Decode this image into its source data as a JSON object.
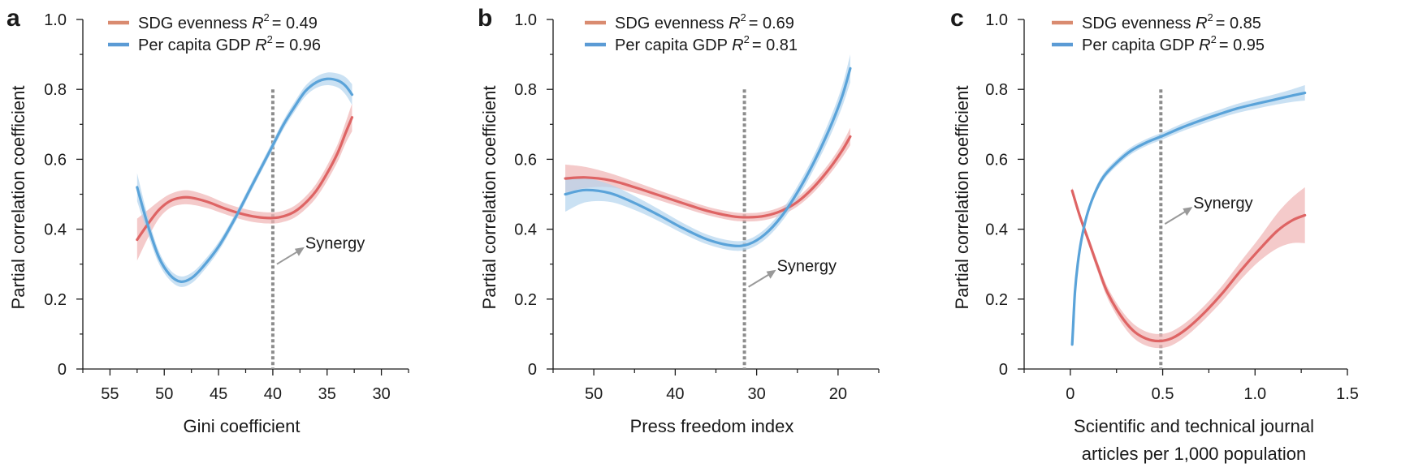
{
  "figure": {
    "ylabel": "Partial correlation coefficient",
    "synergy_label": "Synergy",
    "colors": {
      "sdg_line": "#de6464",
      "sdg_band": "#f0b3b3",
      "sdg_legend": "#d98b70",
      "gdp_line": "#5aa3d9",
      "gdp_band": "#b3d4ee",
      "gdp_legend": "#5b9bd5",
      "threshold": "#8c8c8c",
      "arrow": "#999999"
    }
  },
  "chart_data": [
    {
      "panel": "a",
      "type": "line",
      "xlabel": "Gini coefficient",
      "ylabel": "Partial correlation coefficient",
      "xlim": [
        57.5,
        27.5
      ],
      "ylim": [
        0,
        1.0
      ],
      "x_ticks": [
        55,
        50,
        45,
        40,
        35,
        30
      ],
      "x_tick_labels": [
        "55",
        "50",
        "45",
        "40",
        "35",
        "30"
      ],
      "x_minor_ticks": [
        57.5,
        52.5,
        47.5,
        42.5,
        37.5,
        32.5,
        27.5
      ],
      "y_ticks": [
        0,
        0.2,
        0.4,
        0.6,
        0.8,
        1.0
      ],
      "y_tick_labels": [
        "0",
        "0.2",
        "0.4",
        "0.6",
        "0.8",
        "1.0"
      ],
      "y_minor_ticks": [
        0.1,
        0.3,
        0.5,
        0.7,
        0.9
      ],
      "threshold_x": 40,
      "legend_location": "top-left",
      "series": [
        {
          "name": "SDG evenness",
          "r2_label": "R",
          "r2_value": "= 0.49",
          "x": [
            52.5,
            51.5,
            50.5,
            49.5,
            48.5,
            47.5,
            46,
            44.5,
            43,
            41.5,
            40,
            39,
            38,
            37,
            36,
            35,
            34,
            33.3,
            32.7
          ],
          "y": [
            0.37,
            0.415,
            0.455,
            0.48,
            0.49,
            0.49,
            0.478,
            0.46,
            0.445,
            0.435,
            0.432,
            0.437,
            0.45,
            0.475,
            0.51,
            0.56,
            0.62,
            0.675,
            0.72
          ],
          "ci_halfwidth": [
            0.06,
            0.04,
            0.025,
            0.02,
            0.02,
            0.02,
            0.018,
            0.016,
            0.016,
            0.016,
            0.016,
            0.016,
            0.017,
            0.018,
            0.02,
            0.022,
            0.025,
            0.03,
            0.04
          ]
        },
        {
          "name": "Per capita GDP",
          "r2_label": "R",
          "r2_value": "= 0.96",
          "x": [
            52.5,
            51.5,
            50.5,
            49.5,
            48.5,
            47.5,
            46.5,
            45,
            43.5,
            42,
            40.5,
            40,
            39,
            38,
            37,
            36,
            35,
            34,
            33.3,
            32.7
          ],
          "y": [
            0.52,
            0.41,
            0.32,
            0.27,
            0.25,
            0.26,
            0.29,
            0.35,
            0.43,
            0.52,
            0.61,
            0.64,
            0.7,
            0.75,
            0.795,
            0.82,
            0.83,
            0.825,
            0.81,
            0.785
          ],
          "ci_halfwidth": [
            0.04,
            0.025,
            0.018,
            0.015,
            0.015,
            0.015,
            0.014,
            0.013,
            0.012,
            0.012,
            0.012,
            0.012,
            0.013,
            0.014,
            0.015,
            0.016,
            0.018,
            0.02,
            0.025,
            0.03
          ]
        }
      ]
    },
    {
      "panel": "b",
      "type": "line",
      "xlabel": "Press freedom index",
      "ylabel": "Partial correlation coefficient",
      "xlim": [
        55,
        15
      ],
      "ylim": [
        0,
        1.0
      ],
      "x_ticks": [
        50,
        40,
        30,
        20
      ],
      "x_tick_labels": [
        "50",
        "40",
        "30",
        "20"
      ],
      "x_minor_ticks": [
        55,
        45,
        35,
        25,
        15
      ],
      "y_ticks": [
        0,
        0.2,
        0.4,
        0.6,
        0.8,
        1.0
      ],
      "y_tick_labels": [
        "0",
        "0.2",
        "0.4",
        "0.6",
        "0.8",
        "1.0"
      ],
      "y_minor_ticks": [
        0.1,
        0.3,
        0.5,
        0.7,
        0.9
      ],
      "threshold_x": 31.5,
      "legend_location": "top-left",
      "series": [
        {
          "name": "SDG evenness",
          "r2_label": "R",
          "r2_value": "= 0.69",
          "x": [
            53.5,
            51,
            48,
            45,
            42,
            39,
            36,
            33,
            31,
            29,
            27,
            25,
            23,
            21,
            19.5,
            18.5
          ],
          "y": [
            0.545,
            0.548,
            0.54,
            0.52,
            0.497,
            0.474,
            0.452,
            0.437,
            0.434,
            0.438,
            0.452,
            0.478,
            0.52,
            0.575,
            0.625,
            0.665
          ],
          "ci_halfwidth": [
            0.04,
            0.03,
            0.02,
            0.016,
            0.014,
            0.013,
            0.012,
            0.012,
            0.012,
            0.012,
            0.012,
            0.013,
            0.015,
            0.017,
            0.02,
            0.025
          ]
        },
        {
          "name": "Per capita GDP",
          "r2_label": "R",
          "r2_value": "= 0.81",
          "x": [
            53.5,
            51,
            48,
            45,
            42,
            39,
            36,
            33,
            31,
            29,
            27,
            25,
            23,
            21,
            19.5,
            18.5
          ],
          "y": [
            0.5,
            0.512,
            0.503,
            0.475,
            0.44,
            0.402,
            0.37,
            0.353,
            0.357,
            0.385,
            0.435,
            0.505,
            0.59,
            0.69,
            0.78,
            0.86
          ],
          "ci_halfwidth": [
            0.05,
            0.035,
            0.025,
            0.02,
            0.017,
            0.015,
            0.014,
            0.014,
            0.014,
            0.015,
            0.016,
            0.018,
            0.02,
            0.025,
            0.03,
            0.04
          ]
        }
      ]
    },
    {
      "panel": "c",
      "type": "line",
      "xlabel": "Scientific and technical journal articles per 1,000 population",
      "xlabel_lines": [
        "Scientific and technical journal",
        "articles per 1,000 population"
      ],
      "ylabel": "Partial correlation coefficient",
      "xlim": [
        -0.25,
        1.5
      ],
      "ylim": [
        0,
        1.0
      ],
      "x_ticks": [
        0,
        0.5,
        1.0,
        1.5
      ],
      "x_tick_labels": [
        "0",
        "0.5",
        "1.0",
        "1.5"
      ],
      "x_minor_ticks": [
        -0.25,
        0.25,
        0.75,
        1.25
      ],
      "y_ticks": [
        0,
        0.2,
        0.4,
        0.6,
        0.8,
        1.0
      ],
      "y_tick_labels": [
        "0",
        "0.2",
        "0.4",
        "0.6",
        "0.8",
        "1.0"
      ],
      "y_minor_ticks": [
        0.1,
        0.3,
        0.5,
        0.7,
        0.9
      ],
      "threshold_x": 0.49,
      "legend_location": "top-left",
      "series": [
        {
          "name": "SDG evenness",
          "r2_label": "R",
          "r2_value": "= 0.85",
          "x": [
            0.01,
            0.05,
            0.1,
            0.15,
            0.2,
            0.27,
            0.34,
            0.41,
            0.48,
            0.55,
            0.63,
            0.72,
            0.82,
            0.92,
            1.02,
            1.12,
            1.2,
            1.27
          ],
          "y": [
            0.51,
            0.44,
            0.365,
            0.29,
            0.22,
            0.155,
            0.11,
            0.087,
            0.08,
            0.088,
            0.115,
            0.158,
            0.215,
            0.28,
            0.34,
            0.395,
            0.425,
            0.44
          ],
          "ci_halfwidth": [
            0.01,
            0.01,
            0.012,
            0.014,
            0.016,
            0.018,
            0.02,
            0.02,
            0.02,
            0.02,
            0.02,
            0.02,
            0.022,
            0.026,
            0.033,
            0.05,
            0.065,
            0.08
          ]
        },
        {
          "name": "Per capita GDP",
          "r2_label": "R",
          "r2_value": "= 0.95",
          "x": [
            0.01,
            0.015,
            0.025,
            0.04,
            0.06,
            0.09,
            0.13,
            0.18,
            0.25,
            0.33,
            0.42,
            0.5,
            0.6,
            0.7,
            0.8,
            0.9,
            1.0,
            1.1,
            1.2,
            1.27
          ],
          "y": [
            0.07,
            0.12,
            0.22,
            0.3,
            0.37,
            0.44,
            0.5,
            0.55,
            0.59,
            0.625,
            0.65,
            0.667,
            0.69,
            0.71,
            0.728,
            0.745,
            0.758,
            0.77,
            0.782,
            0.79
          ],
          "ci_halfwidth": [
            0.008,
            0.008,
            0.008,
            0.008,
            0.008,
            0.009,
            0.01,
            0.01,
            0.01,
            0.01,
            0.01,
            0.01,
            0.011,
            0.012,
            0.012,
            0.013,
            0.014,
            0.015,
            0.018,
            0.022
          ]
        }
      ]
    }
  ]
}
